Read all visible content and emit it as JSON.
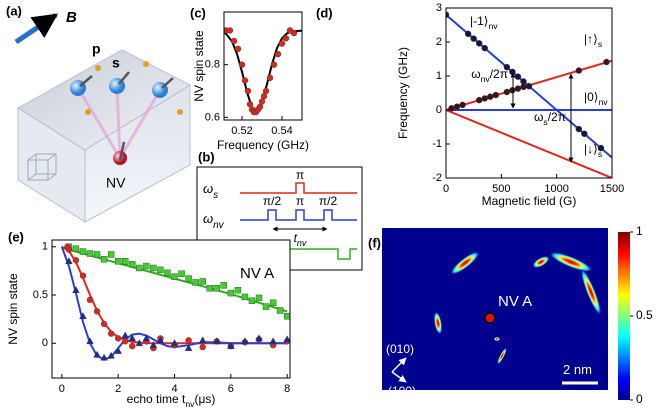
{
  "panel_a": {
    "label": "(a)",
    "field": "B",
    "spins": [
      "p",
      "s"
    ],
    "nv": "NV"
  },
  "panel_b": {
    "label": "(b)",
    "rows": [
      {
        "symbol": "ω",
        "sub": "s"
      },
      {
        "symbol": "ω",
        "sub": "nv"
      },
      {
        "text": "laser"
      }
    ],
    "pulses": [
      "π",
      "π/2",
      "π",
      "π/2"
    ],
    "interval": {
      "text": "t",
      "sub": "nv"
    }
  },
  "chart_data": [
    {
      "type": "scatter",
      "label": "(c)",
      "xlabel": "Frequency (GHz)",
      "ylabel": "NV spin state",
      "xlim": [
        0.511,
        0.55
      ],
      "ylim": [
        0.59,
        1.0
      ],
      "xticks": [
        0.52,
        0.54
      ],
      "yticks": [
        0.6,
        0.8
      ],
      "series": [
        {
          "mode": "markers",
          "marker": "circle",
          "color": "#d42a1f",
          "x": [
            0.512,
            0.514,
            0.516,
            0.518,
            0.52,
            0.5215,
            0.523,
            0.524,
            0.525,
            0.526,
            0.527,
            0.528,
            0.529,
            0.53,
            0.531,
            0.532,
            0.534,
            0.536,
            0.538,
            0.54,
            0.542,
            0.544,
            0.546
          ],
          "values": [
            0.93,
            0.93,
            0.89,
            0.86,
            0.8,
            0.74,
            0.7,
            0.65,
            0.63,
            0.62,
            0.62,
            0.63,
            0.64,
            0.66,
            0.68,
            0.7,
            0.75,
            0.8,
            0.84,
            0.88,
            0.9,
            0.93,
            0.92
          ]
        },
        {
          "mode": "line",
          "color": "#000000",
          "x": [
            0.511,
            0.5125,
            0.515,
            0.5175,
            0.52,
            0.5225,
            0.525,
            0.5275,
            0.53,
            0.5325,
            0.535,
            0.5375,
            0.54,
            0.5425,
            0.545,
            0.5475,
            0.55
          ],
          "values": [
            0.924,
            0.913,
            0.888,
            0.841,
            0.773,
            0.696,
            0.637,
            0.62,
            0.656,
            0.726,
            0.802,
            0.863,
            0.9,
            0.919,
            0.926,
            0.928,
            0.929
          ]
        }
      ]
    },
    {
      "type": "line",
      "label": "(d)",
      "xlabel": "Magnetic field (G)",
      "ylabel": "Frequency (GHz)",
      "xlim": [
        0,
        1500
      ],
      "ylim": [
        -2,
        3
      ],
      "xticks": [
        0,
        500,
        1000,
        1500
      ],
      "yticks": [
        -2,
        -1,
        0,
        1,
        2,
        3
      ],
      "series": [
        {
          "mode": "line",
          "color": "#2a3fd0",
          "x": [
            0,
            1500
          ],
          "values": [
            2.8,
            -1.4
          ]
        },
        {
          "mode": "line",
          "color": "#2a3fd0",
          "x": [
            0,
            1500
          ],
          "values": [
            0,
            0
          ]
        },
        {
          "mode": "line",
          "color": "#e0271f",
          "x": [
            0,
            1500
          ],
          "values": [
            0,
            1.45
          ]
        },
        {
          "mode": "line",
          "color": "#e0271f",
          "x": [
            0,
            1500
          ],
          "values": [
            0,
            -2.0
          ]
        },
        {
          "mode": "markers",
          "marker": "circle",
          "color": "#3a1418",
          "x": [
            50,
            100,
            150,
            300,
            350,
            400,
            450,
            550,
            600,
            650,
            700,
            1200,
            1450
          ],
          "values": [
            0.05,
            0.1,
            0.15,
            0.29,
            0.34,
            0.39,
            0.44,
            0.53,
            0.58,
            0.63,
            0.68,
            1.16,
            1.41
          ]
        },
        {
          "mode": "markers",
          "marker": "circle",
          "color": "#14183a",
          "x": [
            0,
            200,
            250,
            300,
            350,
            550,
            600,
            650,
            700,
            750,
            1200,
            1250,
            1400
          ],
          "values": [
            2.8,
            2.24,
            2.1,
            1.96,
            1.82,
            1.26,
            1.12,
            0.98,
            0.84,
            0.7,
            -0.56,
            -0.7,
            -1.12
          ]
        }
      ],
      "annotations": [
        {
          "text": "|-1⟩",
          "sub": "nv"
        },
        {
          "text": "|↑⟩",
          "sub": "s"
        },
        {
          "text": "|0⟩",
          "sub": "nv"
        },
        {
          "text": "|↓⟩",
          "sub": "s"
        },
        {
          "text": "ω",
          "sub": "nv",
          "tail": "/2π"
        },
        {
          "text": "ω",
          "sub": "s",
          "tail": "/2π"
        }
      ]
    },
    {
      "type": "scatter",
      "label": "(e)",
      "xlabel": {
        "text": "echo time t",
        "sub": "nv",
        "tail": "(μs)"
      },
      "ylabel": "NV spin state",
      "xlim": [
        -0.35,
        8.1
      ],
      "ylim": [
        -0.36,
        1.07
      ],
      "xticks": [
        0,
        2,
        4,
        6,
        8
      ],
      "yticks": [
        0,
        0.5,
        1
      ],
      "series": [
        {
          "mode": "markers",
          "marker": "square",
          "color": "#3fcf2a",
          "x": [
            0.25,
            0.5,
            0.75,
            1,
            1.25,
            1.5,
            1.75,
            2,
            2.25,
            2.5,
            2.75,
            3,
            3.25,
            3.5,
            3.75,
            4,
            4.25,
            4.5,
            4.75,
            5,
            5.25,
            5.5,
            5.75,
            6,
            6.25,
            6.5,
            6.75,
            7,
            7.25,
            7.5,
            7.75,
            8
          ],
          "values": [
            1.0,
            0.98,
            0.95,
            0.93,
            0.92,
            0.87,
            0.92,
            0.85,
            0.85,
            0.82,
            0.78,
            0.8,
            0.78,
            0.76,
            0.73,
            0.69,
            0.72,
            0.67,
            0.63,
            0.64,
            0.57,
            0.57,
            0.6,
            0.52,
            0.55,
            0.48,
            0.44,
            0.47,
            0.38,
            0.42,
            0.34,
            0.28
          ]
        },
        {
          "mode": "line",
          "color": "#2fae1f",
          "x": [
            0,
            1,
            2,
            3,
            4,
            5,
            6,
            7,
            8
          ],
          "values": [
            0.99,
            0.91,
            0.83,
            0.75,
            0.67,
            0.59,
            0.51,
            0.42,
            0.33
          ]
        },
        {
          "mode": "markers",
          "marker": "circle",
          "color": "#d42a1f",
          "x": [
            0.2,
            0.25,
            0.5,
            0.75,
            1,
            1.25,
            1.5,
            1.75,
            2,
            2.25,
            2.5,
            3,
            3.25,
            3.5,
            4,
            4.5,
            5,
            5.5,
            6,
            6.5,
            7,
            7.5,
            8
          ],
          "values": [
            1.0,
            0.97,
            0.86,
            0.7,
            0.45,
            0.33,
            0.2,
            0.1,
            0.05,
            0.02,
            -0.03,
            0.02,
            -0.05,
            0.05,
            -0.02,
            0.03,
            -0.04,
            0.02,
            -0.03,
            0.01,
            0.04,
            -0.02,
            0.02
          ]
        },
        {
          "mode": "line",
          "color": "#e0271f",
          "x": [
            0,
            0.25,
            0.5,
            0.75,
            1,
            1.25,
            1.5,
            1.75,
            2,
            2.5,
            3,
            4,
            6,
            8
          ],
          "values": [
            1,
            0.958,
            0.841,
            0.677,
            0.5,
            0.338,
            0.21,
            0.119,
            0.062,
            0.013,
            0.002,
            0,
            0,
            0
          ]
        },
        {
          "mode": "markers",
          "marker": "triangle",
          "color": "#1f2a9a",
          "x": [
            0.25,
            0.5,
            0.75,
            1,
            1.25,
            1.5,
            1.75,
            2,
            2.25,
            2.5,
            2.75,
            3,
            3.25,
            3.5,
            4,
            4.5,
            5,
            5.5,
            6,
            6.5,
            7,
            7.5,
            8
          ],
          "values": [
            0.85,
            0.55,
            0.28,
            0.02,
            -0.12,
            -0.15,
            -0.13,
            -0.08,
            0.08,
            0.05,
            0.0,
            0.05,
            -0.02,
            0.03,
            0.0,
            -0.05,
            0.03,
            0.02,
            -0.03,
            0.02,
            0.05,
            0.02,
            0.04
          ]
        },
        {
          "mode": "line",
          "color": "#2a3fd0",
          "x": [
            0,
            0.25,
            0.5,
            0.75,
            1,
            1.25,
            1.5,
            1.75,
            2,
            2.25,
            2.5,
            2.75,
            3,
            3.25,
            3.5,
            3.75,
            4,
            4.5,
            5,
            5.5,
            6,
            7,
            8
          ],
          "values": [
            1,
            0.8,
            0.52,
            0.22,
            0,
            -0.13,
            -0.17,
            -0.14,
            -0.05,
            0.04,
            0.09,
            0.1,
            0.08,
            0.04,
            0,
            -0.03,
            -0.04,
            -0.02,
            0.01,
            0.01,
            0,
            0,
            0
          ]
        }
      ],
      "annotations": [
        {
          "text": "NV A"
        }
      ]
    },
    {
      "type": "heatmap",
      "label": "(f)",
      "clim": [
        0,
        1
      ],
      "cticks": [
        0,
        0.5,
        1
      ],
      "annotations": [
        {
          "text": "NV A"
        },
        {
          "text": "(010)"
        },
        {
          "text": "(100)"
        },
        {
          "text": "2 nm"
        }
      ]
    }
  ]
}
